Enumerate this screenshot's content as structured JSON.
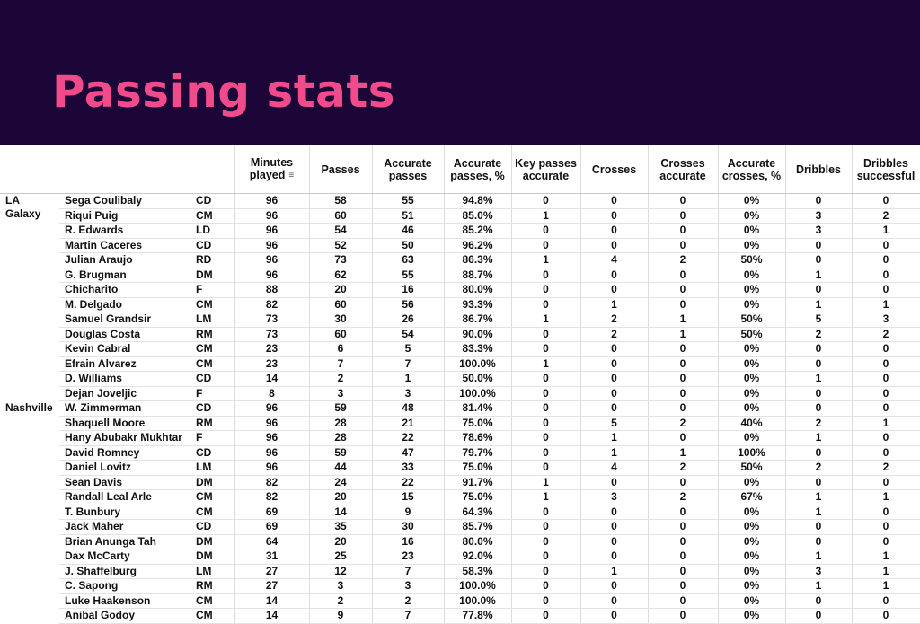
{
  "title": "Passing stats",
  "colors": {
    "banner_bg": "#1c0537",
    "title": "#f14b8c"
  },
  "table": {
    "headers": [
      {
        "key": "minutes",
        "label_lines": [
          "Minutes",
          "played"
        ],
        "sort_icon": "sort-icon"
      },
      {
        "key": "passes",
        "label_lines": [
          "Passes"
        ]
      },
      {
        "key": "accurate_passes",
        "label_lines": [
          "Accurate",
          "passes"
        ]
      },
      {
        "key": "accurate_passes_pct",
        "label_lines": [
          "Accurate",
          "passes, %"
        ]
      },
      {
        "key": "key_passes_accurate",
        "label_lines": [
          "Key passes",
          "accurate"
        ]
      },
      {
        "key": "crosses",
        "label_lines": [
          "Crosses"
        ]
      },
      {
        "key": "crosses_accurate",
        "label_lines": [
          "Crosses",
          "accurate"
        ]
      },
      {
        "key": "accurate_crosses_pct",
        "label_lines": [
          "Accurate",
          "crosses, %"
        ]
      },
      {
        "key": "dribbles",
        "label_lines": [
          "Dribbles"
        ]
      },
      {
        "key": "dribbles_successful",
        "label_lines": [
          "Dribbles",
          "successful"
        ]
      }
    ],
    "groups": [
      {
        "team_lines": [
          "LA",
          "Galaxy"
        ],
        "rows": [
          {
            "player": "Sega Coulibaly",
            "pos": "CD",
            "stats": [
              "96",
              "58",
              "55",
              "94.8%",
              "0",
              "0",
              "0",
              "0%",
              "0",
              "0"
            ]
          },
          {
            "player": "Riqui Puig",
            "pos": "CM",
            "stats": [
              "96",
              "60",
              "51",
              "85.0%",
              "1",
              "0",
              "0",
              "0%",
              "3",
              "2"
            ]
          },
          {
            "player": "R. Edwards",
            "pos": "LD",
            "stats": [
              "96",
              "54",
              "46",
              "85.2%",
              "0",
              "0",
              "0",
              "0%",
              "3",
              "1"
            ]
          },
          {
            "player": "Martin Caceres",
            "pos": "CD",
            "stats": [
              "96",
              "52",
              "50",
              "96.2%",
              "0",
              "0",
              "0",
              "0%",
              "0",
              "0"
            ]
          },
          {
            "player": "Julian Araujo",
            "pos": "RD",
            "stats": [
              "96",
              "73",
              "63",
              "86.3%",
              "1",
              "4",
              "2",
              "50%",
              "0",
              "0"
            ]
          },
          {
            "player": "G. Brugman",
            "pos": "DM",
            "stats": [
              "96",
              "62",
              "55",
              "88.7%",
              "0",
              "0",
              "0",
              "0%",
              "1",
              "0"
            ]
          },
          {
            "player": "Chicharito",
            "pos": "F",
            "stats": [
              "88",
              "20",
              "16",
              "80.0%",
              "0",
              "0",
              "0",
              "0%",
              "0",
              "0"
            ]
          },
          {
            "player": "M. Delgado",
            "pos": "CM",
            "stats": [
              "82",
              "60",
              "56",
              "93.3%",
              "0",
              "1",
              "0",
              "0%",
              "1",
              "1"
            ]
          },
          {
            "player": "Samuel Grandsir",
            "pos": "LM",
            "stats": [
              "73",
              "30",
              "26",
              "86.7%",
              "1",
              "2",
              "1",
              "50%",
              "5",
              "3"
            ]
          },
          {
            "player": "Douglas Costa",
            "pos": "RM",
            "stats": [
              "73",
              "60",
              "54",
              "90.0%",
              "0",
              "2",
              "1",
              "50%",
              "2",
              "2"
            ]
          },
          {
            "player": "Kevin Cabral",
            "pos": "CM",
            "stats": [
              "23",
              "6",
              "5",
              "83.3%",
              "0",
              "0",
              "0",
              "0%",
              "0",
              "0"
            ]
          },
          {
            "player": "Efrain Alvarez",
            "pos": "CM",
            "stats": [
              "23",
              "7",
              "7",
              "100.0%",
              "1",
              "0",
              "0",
              "0%",
              "0",
              "0"
            ]
          },
          {
            "player": "D. Williams",
            "pos": "CD",
            "stats": [
              "14",
              "2",
              "1",
              "50.0%",
              "0",
              "0",
              "0",
              "0%",
              "1",
              "0"
            ]
          },
          {
            "player": "Dejan Joveljic",
            "pos": "F",
            "stats": [
              "8",
              "3",
              "3",
              "100.0%",
              "0",
              "0",
              "0",
              "0%",
              "0",
              "0"
            ]
          }
        ]
      },
      {
        "team_lines": [
          "Nashville"
        ],
        "rows": [
          {
            "player": "W. Zimmerman",
            "pos": "CD",
            "stats": [
              "96",
              "59",
              "48",
              "81.4%",
              "0",
              "0",
              "0",
              "0%",
              "0",
              "0"
            ]
          },
          {
            "player": "Shaquell Moore",
            "pos": "RM",
            "stats": [
              "96",
              "28",
              "21",
              "75.0%",
              "0",
              "5",
              "2",
              "40%",
              "2",
              "1"
            ]
          },
          {
            "player": "Hany Abubakr Mukhtar",
            "pos": "F",
            "stats": [
              "96",
              "28",
              "22",
              "78.6%",
              "0",
              "1",
              "0",
              "0%",
              "1",
              "0"
            ]
          },
          {
            "player": "David Romney",
            "pos": "CD",
            "stats": [
              "96",
              "59",
              "47",
              "79.7%",
              "0",
              "1",
              "1",
              "100%",
              "0",
              "0"
            ]
          },
          {
            "player": "Daniel Lovitz",
            "pos": "LM",
            "stats": [
              "96",
              "44",
              "33",
              "75.0%",
              "0",
              "4",
              "2",
              "50%",
              "2",
              "2"
            ]
          },
          {
            "player": "Sean Davis",
            "pos": "DM",
            "stats": [
              "82",
              "24",
              "22",
              "91.7%",
              "1",
              "0",
              "0",
              "0%",
              "0",
              "0"
            ]
          },
          {
            "player": "Randall Leal Arle",
            "pos": "CM",
            "stats": [
              "82",
              "20",
              "15",
              "75.0%",
              "1",
              "3",
              "2",
              "67%",
              "1",
              "1"
            ]
          },
          {
            "player": "T. Bunbury",
            "pos": "CM",
            "stats": [
              "69",
              "14",
              "9",
              "64.3%",
              "0",
              "0",
              "0",
              "0%",
              "1",
              "0"
            ]
          },
          {
            "player": "Jack Maher",
            "pos": "CD",
            "stats": [
              "69",
              "35",
              "30",
              "85.7%",
              "0",
              "0",
              "0",
              "0%",
              "0",
              "0"
            ]
          },
          {
            "player": "Brian Anunga Tah",
            "pos": "DM",
            "stats": [
              "64",
              "20",
              "16",
              "80.0%",
              "0",
              "0",
              "0",
              "0%",
              "0",
              "0"
            ]
          },
          {
            "player": "Dax McCarty",
            "pos": "DM",
            "stats": [
              "31",
              "25",
              "23",
              "92.0%",
              "0",
              "0",
              "0",
              "0%",
              "1",
              "1"
            ]
          },
          {
            "player": "J. Shaffelburg",
            "pos": "LM",
            "stats": [
              "27",
              "12",
              "7",
              "58.3%",
              "0",
              "1",
              "0",
              "0%",
              "3",
              "1"
            ]
          },
          {
            "player": "C. Sapong",
            "pos": "RM",
            "stats": [
              "27",
              "3",
              "3",
              "100.0%",
              "0",
              "0",
              "0",
              "0%",
              "1",
              "1"
            ]
          },
          {
            "player": "Luke Haakenson",
            "pos": "CM",
            "stats": [
              "14",
              "2",
              "2",
              "100.0%",
              "0",
              "0",
              "0",
              "0%",
              "0",
              "0"
            ]
          },
          {
            "player": "Anibal Godoy",
            "pos": "CM",
            "stats": [
              "14",
              "9",
              "7",
              "77.8%",
              "0",
              "0",
              "0",
              "0%",
              "0",
              "0"
            ]
          }
        ]
      }
    ]
  }
}
